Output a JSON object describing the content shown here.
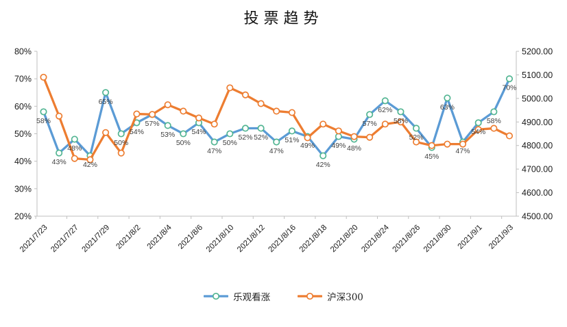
{
  "title": "投票趋势",
  "chart_data": {
    "type": "line",
    "title": "投票趋势",
    "categories": [
      "2021/7/23",
      "2021/7/26",
      "2021/7/27",
      "2021/7/28",
      "2021/7/29",
      "2021/7/30",
      "2021/8/2",
      "2021/8/3",
      "2021/8/4",
      "2021/8/5",
      "2021/8/6",
      "2021/8/9",
      "2021/8/10",
      "2021/8/11",
      "2021/8/12",
      "2021/8/13",
      "2021/8/16",
      "2021/8/17",
      "2021/8/18",
      "2021/8/19",
      "2021/8/20",
      "2021/8/23",
      "2021/8/24",
      "2021/8/25",
      "2021/8/26",
      "2021/8/27",
      "2021/8/30",
      "2021/8/31",
      "2021/9/1",
      "2021/9/2",
      "2021/9/3"
    ],
    "x_tick_interval": 2,
    "visible_x_tick_labels": [
      "2021/7/23",
      "2021/7/27",
      "2021/7/29",
      "2021/8/2",
      "2021/8/4",
      "2021/8/6",
      "2021/8/10",
      "2021/8/12",
      "2021/8/16",
      "2021/8/18",
      "2021/8/20",
      "2021/8/24",
      "2021/8/26",
      "2021/8/30",
      "2021/9/1",
      "2021/9/3"
    ],
    "series": [
      {
        "name": "乐观看涨",
        "axis": "left",
        "unit": "%",
        "color": "#5B9BD5",
        "marker_fill": "#FFFFFF",
        "marker_stroke": "#52B592",
        "data_labels": true,
        "values": [
          58,
          43,
          48,
          42,
          65,
          50,
          54,
          57,
          53,
          50,
          54,
          47,
          50,
          52,
          52,
          47,
          51,
          49,
          42,
          49,
          48,
          57,
          62,
          58,
          52,
          45,
          63,
          47,
          54,
          58,
          70
        ]
      },
      {
        "name": "沪深300",
        "axis": "right",
        "unit": "",
        "color": "#ED7D31",
        "marker_fill": "#FFFFFF",
        "marker_stroke": "#ED7D31",
        "data_labels": false,
        "values": [
          5090,
          4925,
          4745,
          4740,
          4855,
          4768,
          4934,
          4932,
          4973,
          4946,
          4917,
          4891,
          5045,
          5015,
          4978,
          4946,
          4940,
          4833,
          4891,
          4862,
          4838,
          4835,
          4891,
          4900,
          4815,
          4800,
          4806,
          4806,
          4868,
          4873,
          4841
        ]
      }
    ],
    "left_axis": {
      "min": 20,
      "max": 80,
      "step": 10,
      "tick_labels": [
        "80%",
        "70%",
        "60%",
        "50%",
        "40%",
        "30%",
        "20%"
      ]
    },
    "right_axis": {
      "min": 4500,
      "max": 5200,
      "step": 100,
      "tick_labels": [
        "5200.00",
        "5100.00",
        "5000.00",
        "4900.00",
        "4800.00",
        "4700.00",
        "4600.00",
        "4500.00"
      ]
    },
    "legend": {
      "position": "bottom",
      "entries": [
        "乐观看涨",
        "沪深300"
      ]
    },
    "grid": false
  },
  "colors": {
    "axis_line": "#BFBFBF",
    "tick_text": "#1a1a1a",
    "data_label_text": "#404040"
  }
}
